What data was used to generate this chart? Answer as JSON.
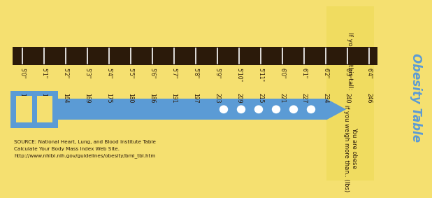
{
  "bg_color": "#F5E070",
  "title": "Obesity Table",
  "title_color": "#5B9BD5",
  "ruler_color": "#2B1A0A",
  "ruler_tick_color": "#FFFFFF",
  "heights": [
    "5'0\"",
    "5'1\"",
    "5'2\"",
    "5'3\"",
    "5'4\"",
    "5'5\"",
    "5'6\"",
    "5'7\"",
    "5'8\"",
    "5'9\"",
    "5'10\"",
    "5'11\"",
    "6'0\"",
    "6'1\"",
    "6'2\"",
    "6'3\"",
    "6'4\""
  ],
  "weights": [
    "153",
    "159",
    "164",
    "169",
    "175",
    "180",
    "186",
    "191",
    "197",
    "203",
    "209",
    "215",
    "221",
    "227",
    "234",
    "240",
    "246"
  ],
  "label_top": "If you are this tall:",
  "label_bottom": "You are obese\nif you weigh more than.. (lbs)",
  "belt_color": "#5B9BD5",
  "dot_color": "#FFFFFF",
  "source_text": "SOURCE: National Heart, Lung, and Blood Institute Table\nCalculate Your Body Mass Index Web Site.\nhttp://www.nhlbi.nih.gov/guidelines/obesity/bmi_tbl.htm",
  "label_panel_color": "#F0DC60",
  "title_panel_color": "#F0DC60"
}
